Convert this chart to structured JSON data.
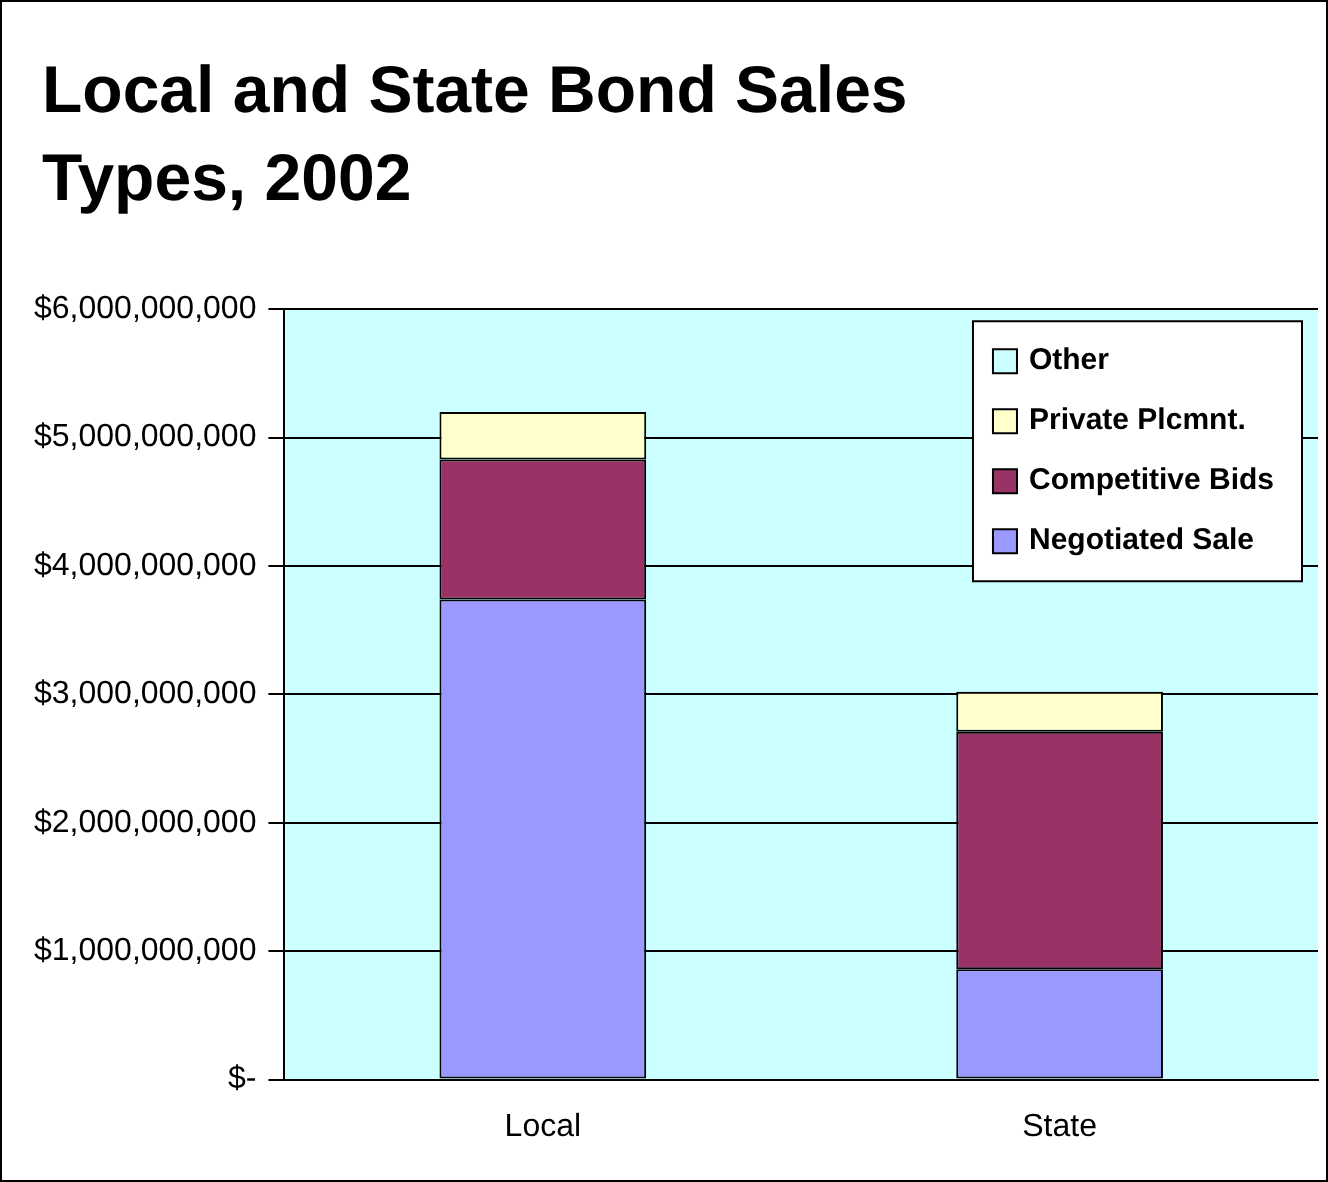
{
  "chart_data": {
    "type": "bar",
    "title": "Local and State Bond Sales Types, 2002",
    "categories": [
      "Local",
      "State"
    ],
    "stacked": true,
    "series": [
      {
        "name": "Negotiated Sale",
        "color": "#9999ff",
        "values": [
          3740000000,
          860000000
        ]
      },
      {
        "name": "Competitive Bids",
        "color": "#993366",
        "values": [
          1090000000,
          1850000000
        ]
      },
      {
        "name": "Private Plcmnt.",
        "color": "#ffffcc",
        "values": [
          370000000,
          310000000
        ]
      },
      {
        "name": "Other",
        "color": "#ccffff",
        "values": [
          0,
          0
        ]
      }
    ],
    "ylim": [
      0,
      6000000000
    ],
    "yticks": [
      {
        "value": 0,
        "label": "$-"
      },
      {
        "value": 1000000000,
        "label": "$1,000,000,000"
      },
      {
        "value": 2000000000,
        "label": "$2,000,000,000"
      },
      {
        "value": 3000000000,
        "label": "$3,000,000,000"
      },
      {
        "value": 4000000000,
        "label": "$4,000,000,000"
      },
      {
        "value": 5000000000,
        "label": "$5,000,000,000"
      },
      {
        "value": 6000000000,
        "label": "$6,000,000,000"
      }
    ],
    "grid": "y",
    "legend": "top right"
  }
}
